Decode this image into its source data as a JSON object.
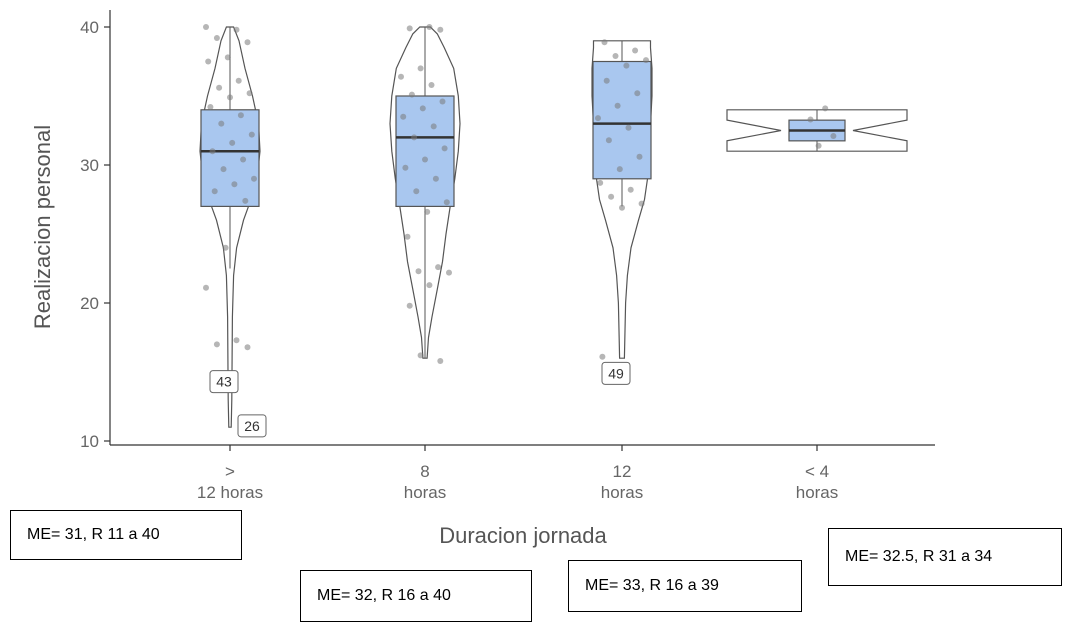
{
  "chart_data": {
    "type": "violin-box",
    "xlabel": "Duracion jornada",
    "ylabel": "Realizacion personal",
    "ylim": [
      10,
      40
    ],
    "yticks": [
      10,
      20,
      30,
      40
    ],
    "grid": false,
    "colors": {
      "box_fill": "#a9c7ef",
      "box_stroke": "#555555",
      "violin_stroke": "#555555",
      "point": "#7a7a7a"
    },
    "groups": [
      {
        "category": [
          "> ",
          "12 horas"
        ],
        "box": {
          "q1": 27,
          "median": 31,
          "q3": 34,
          "whisker_low": 22.5,
          "whisker_high": 40
        },
        "violin": [
          [
            11,
            0.04
          ],
          [
            13,
            0.06
          ],
          [
            16,
            0.07
          ],
          [
            19,
            0.08
          ],
          [
            22,
            0.12
          ],
          [
            24,
            0.22
          ],
          [
            26,
            0.45
          ],
          [
            27.5,
            0.7
          ],
          [
            29,
            0.9
          ],
          [
            31,
            1.0
          ],
          [
            33,
            0.95
          ],
          [
            35,
            0.75
          ],
          [
            37,
            0.5
          ],
          [
            39,
            0.3
          ],
          [
            40,
            0.12
          ]
        ],
        "points": [
          40,
          39.8,
          39.2,
          38.9,
          37.8,
          37.5,
          36.1,
          35.6,
          35.2,
          34.9,
          34.2,
          33.6,
          33.0,
          32.2,
          31.6,
          31.0,
          30.4,
          29.7,
          29.0,
          28.6,
          28.1,
          27.4,
          24.0,
          21.1,
          17.3,
          17.0,
          16.8
        ],
        "outliers": [
          {
            "value": 14.3,
            "label": "43"
          },
          {
            "value": 11.1,
            "label": "26"
          }
        ]
      },
      {
        "category": [
          "8",
          "horas"
        ],
        "box": {
          "q1": 27,
          "median": 32,
          "q3": 35,
          "whisker_low": 16,
          "whisker_high": 40
        },
        "violin": [
          [
            16,
            0.06
          ],
          [
            17.5,
            0.1
          ],
          [
            19,
            0.2
          ],
          [
            21,
            0.35
          ],
          [
            23,
            0.5
          ],
          [
            25,
            0.6
          ],
          [
            27,
            0.72
          ],
          [
            29,
            0.85
          ],
          [
            31,
            0.95
          ],
          [
            33,
            1.0
          ],
          [
            35,
            0.95
          ],
          [
            37,
            0.82
          ],
          [
            38.5,
            0.55
          ],
          [
            39.5,
            0.35
          ],
          [
            40,
            0.15
          ]
        ],
        "points": [
          40,
          39.9,
          39.8,
          37.0,
          36.4,
          35.8,
          35.1,
          34.6,
          34.1,
          33.5,
          32.8,
          32.0,
          31.2,
          30.4,
          29.8,
          29.0,
          28.1,
          27.3,
          26.6,
          24.8,
          22.6,
          22.3,
          22.2,
          21.3,
          19.8,
          15.8,
          16.2
        ],
        "outliers": []
      },
      {
        "category": [
          "12",
          "horas"
        ],
        "box": {
          "q1": 29,
          "median": 33,
          "q3": 37.5,
          "whisker_low": 27,
          "whisker_high": 39
        },
        "violin": [
          [
            16,
            0.08
          ],
          [
            18,
            0.1
          ],
          [
            20,
            0.12
          ],
          [
            22,
            0.18
          ],
          [
            24,
            0.3
          ],
          [
            26,
            0.55
          ],
          [
            27.5,
            0.75
          ],
          [
            29,
            0.85
          ],
          [
            31,
            0.92
          ],
          [
            33,
            0.95
          ],
          [
            35,
            1.0
          ],
          [
            37,
            1.0
          ],
          [
            38.5,
            0.95
          ],
          [
            39,
            0.95
          ]
        ],
        "points": [
          38.9,
          38.3,
          37.9,
          37.6,
          37.2,
          36.1,
          35.2,
          34.3,
          33.4,
          32.7,
          31.8,
          30.6,
          29.7,
          28.7,
          28.2,
          27.7,
          27.2,
          26.9,
          16.1
        ],
        "outliers": [
          {
            "value": 14.9,
            "label": "49"
          }
        ]
      },
      {
        "category": [
          "< 4",
          "horas"
        ],
        "box": {
          "q1": 31.75,
          "median": 32.5,
          "q3": 33.25,
          "whisker_low": 31,
          "whisker_high": 34
        },
        "violin": [
          [
            31,
            1.0
          ],
          [
            31.75,
            1.0
          ],
          [
            32.5,
            0.4
          ],
          [
            33.25,
            1.0
          ],
          [
            34,
            1.0
          ]
        ],
        "points": [
          34.1,
          33.3,
          32.1,
          31.4
        ],
        "outliers": []
      }
    ]
  },
  "annotations": [
    {
      "text": "ME= 31, R 11 a 40"
    },
    {
      "text": "ME= 32, R 16 a 40"
    },
    {
      "text": "ME= 33, R 16 a 39"
    },
    {
      "text": "ME= 32.5, R 31 a 34"
    }
  ]
}
